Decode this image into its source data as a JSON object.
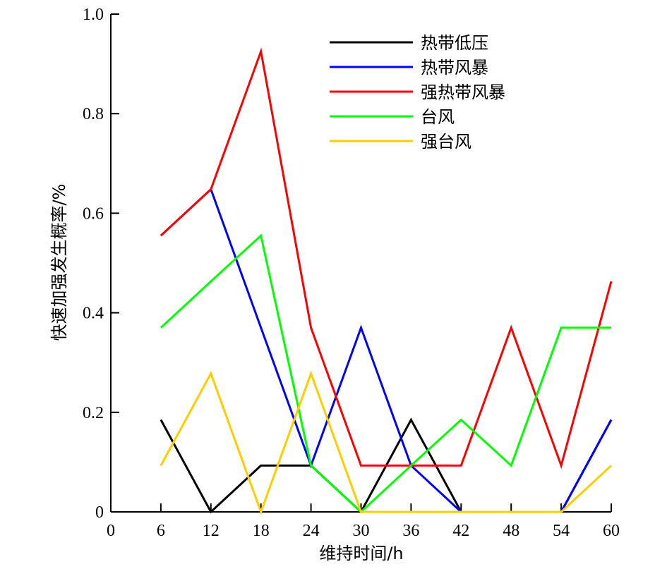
{
  "chart_data": {
    "type": "line",
    "xlabel": "维持时间/h",
    "ylabel": "快速加强发生概率/%",
    "xlim": [
      0,
      60
    ],
    "ylim": [
      0,
      1.0
    ],
    "x_ticks": [
      "0",
      "6",
      "12",
      "18",
      "24",
      "30",
      "36",
      "42",
      "48",
      "54",
      "60"
    ],
    "y_ticks": [
      "0",
      "0.2",
      "0.4",
      "0.6",
      "0.8",
      "1.0"
    ],
    "grid": false,
    "legend_position": "top-right",
    "x": [
      6,
      12,
      18,
      24,
      30,
      36,
      42,
      48,
      54,
      60
    ],
    "series": [
      {
        "name": "热带低压",
        "color": "#000000",
        "values": [
          0.185,
          0.0,
          0.093,
          0.093,
          0.0,
          0.185,
          0.0,
          0.0,
          0.0,
          0.185
        ]
      },
      {
        "name": "热带风暴",
        "color": "#0000ff",
        "values": [
          0.555,
          0.648,
          0.37,
          0.093,
          0.37,
          0.093,
          0.0,
          0.0,
          0.0,
          0.185
        ]
      },
      {
        "name": "强热带风暴",
        "color": "#ff0000",
        "values": [
          0.555,
          0.648,
          0.925,
          0.37,
          0.093,
          0.093,
          0.093,
          0.37,
          0.093,
          0.463
        ]
      },
      {
        "name": "台风",
        "color": "#00ff00",
        "values": [
          0.37,
          0.463,
          0.555,
          0.093,
          0.0,
          0.093,
          0.185,
          0.093,
          0.37,
          0.37
        ]
      },
      {
        "name": "强台风",
        "color": "#ffcc00",
        "values": [
          0.093,
          0.278,
          0.0,
          0.278,
          0.0,
          0.0,
          0.0,
          0.0,
          0.0,
          0.093
        ]
      }
    ]
  }
}
